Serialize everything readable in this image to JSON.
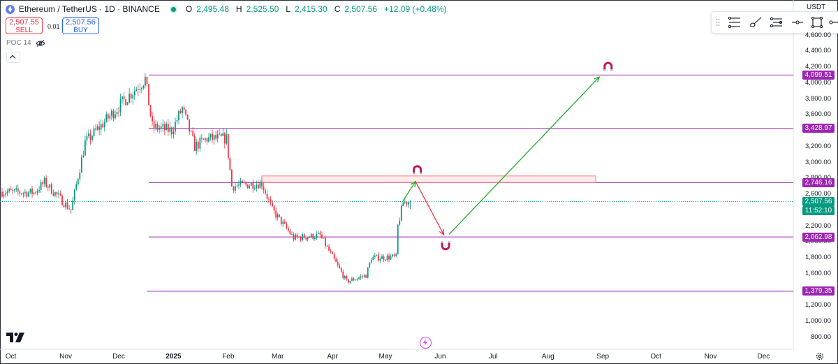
{
  "header": {
    "symbol": "Ethereum / TetherUS · 1D · BINANCE",
    "o_key": "O",
    "o_val": "2,495.48",
    "h_key": "H",
    "h_val": "2,525.50",
    "l_key": "L",
    "l_val": "2,415.30",
    "c_key": "C",
    "c_val": "2,507.56",
    "change": "+12.09 (+0.48%)"
  },
  "trade": {
    "sell_price": "2,507.55",
    "sell_label": "SELL",
    "spread": "0.01",
    "buy_price": "2,507.56",
    "buy_label": "BUY"
  },
  "indicator": {
    "name": "POC 14"
  },
  "currency": "USDT",
  "price_axis": {
    "ticks": [
      "4,600.00",
      "4,400.00",
      "4,200.00",
      "4,000.00",
      "3,800.00",
      "3,600.00",
      "3,400.00",
      "3,200.00",
      "3,000.00",
      "2,800.00",
      "2,600.00",
      "2,400.00",
      "2,200.00",
      "2,000.00",
      "1,800.00",
      "1,600.00",
      "1,400.00",
      "1,200.00",
      "1,000.00",
      "800.00"
    ],
    "tags": {
      "level_4099": "4,099.51",
      "level_3428": "3,428.97",
      "level_2746": "2,746.16",
      "current_price": "2,507.56",
      "countdown": "11:52:10",
      "level_2062": "2,062.98",
      "level_1379": "1,379.35"
    }
  },
  "time_axis": [
    "Oct",
    "Nov",
    "Dec",
    "2025",
    "Feb",
    "Mar",
    "Apr",
    "May",
    "Jun",
    "Jul",
    "Aug",
    "Sep",
    "Oct",
    "Nov",
    "Dec"
  ],
  "colors": {
    "up": "#089981",
    "down": "#f23645",
    "level": "#9c27b0",
    "arrow_up": "#22ab2a",
    "arrow_down": "#f23645",
    "magnet": "#c2185b"
  },
  "icons": [
    "ethereum-logo-icon",
    "live-dot-icon",
    "eye-crossed-icon",
    "chevron-up-icon",
    "fib-tool-icon",
    "brush-tool-icon",
    "pitchfork-icon",
    "line-tool-icon",
    "rectangle-tool-icon",
    "magnet-icon",
    "tradingview-logo-icon",
    "lightning-icon",
    "gear-icon"
  ],
  "chart_data": {
    "type": "candlestick",
    "x_start": "2024-09-26",
    "y_unit": "USDT",
    "ylim": [
      730,
      4700
    ],
    "last_close": 2507.56,
    "ohlc_last": {
      "open": 2495.48,
      "high": 2525.5,
      "low": 2415.3,
      "close": 2507.56
    },
    "close_path": [
      [
        "2024-09-26",
        2630
      ],
      [
        "2024-10-14",
        2620
      ],
      [
        "2024-10-20",
        2750
      ],
      [
        "2024-11-04",
        2400
      ],
      [
        "2024-11-12",
        3250
      ],
      [
        "2024-12-05",
        3800
      ],
      [
        "2024-12-16",
        4050
      ],
      [
        "2024-12-20",
        3450
      ],
      [
        "2024-12-31",
        3400
      ],
      [
        "2025-01-06",
        3680
      ],
      [
        "2025-01-13",
        3200
      ],
      [
        "2025-01-20",
        3300
      ],
      [
        "2025-01-31",
        3300
      ],
      [
        "2025-02-03",
        2700
      ],
      [
        "2025-02-20",
        2740
      ],
      [
        "2025-02-26",
        2400
      ],
      [
        "2025-03-10",
        2050
      ],
      [
        "2025-03-25",
        2080
      ],
      [
        "2025-04-09",
        1500
      ],
      [
        "2025-04-20",
        1580
      ],
      [
        "2025-04-23",
        1800
      ],
      [
        "2025-05-07",
        1810
      ],
      [
        "2025-05-08",
        2200
      ],
      [
        "2025-05-11",
        2500
      ],
      [
        "2025-05-15",
        2507.56
      ]
    ],
    "levels": [
      4099.51,
      3428.97,
      2746.16,
      2062.98,
      1379.35
    ],
    "resistance_zone": [
      2746.16,
      2830
    ],
    "projection": [
      [
        "2025-05-18",
        2760
      ],
      [
        "2025-06-05",
        2063
      ],
      [
        "2025-08-30",
        4099.51
      ]
    ]
  }
}
